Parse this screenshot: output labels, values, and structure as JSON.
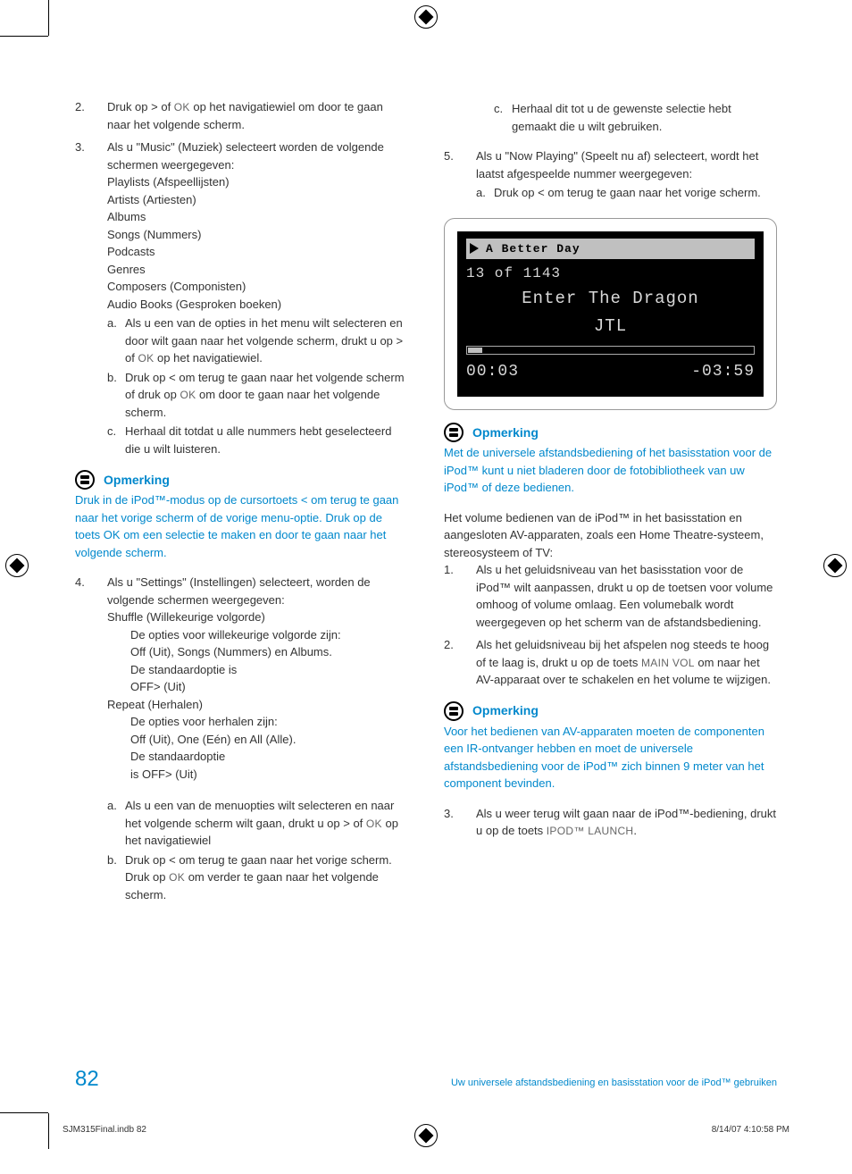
{
  "colors": {
    "accent": "#0088cc",
    "text": "#333333",
    "lcd_bg": "#000000",
    "lcd_fg": "#d8d8d8",
    "lcd_header_bg": "#c0c0c0"
  },
  "left": {
    "item2": {
      "num": "2.",
      "text_a": "Druk op > of ",
      "ok": "OK",
      "text_b": " op het navigatiewiel om door te gaan naar het volgende scherm."
    },
    "item3": {
      "num": "3.",
      "intro": "Als u \"Music\" (Muziek) selecteert worden de volgende schermen weergegeven:",
      "list": [
        "Playlists (Afspeellijsten)",
        "Artists (Artiesten)",
        "Albums",
        "Songs (Nummers)",
        "Podcasts",
        "Genres",
        "Composers (Componisten)",
        "Audio Books (Gesproken boeken)"
      ],
      "a": {
        "m": "a.",
        "t1": "Als u een van de opties in het menu wilt selecteren en door wilt gaan naar het volgende scherm, drukt u op > of ",
        "ok": "OK",
        "t2": " op het navigatiewiel."
      },
      "b": {
        "m": "b.",
        "t1": "Druk op < om terug te gaan naar het volgende scherm of druk op ",
        "ok": "OK",
        "t2": " om door te gaan naar het volgende scherm."
      },
      "c": {
        "m": "c.",
        "t": "Herhaal dit totdat u alle nummers hebt geselecteerd die u wilt luisteren."
      }
    },
    "note1": {
      "title": "Opmerking",
      "body_a": "Druk in de iPod™-modus op de cursortoets < om terug te gaan naar het vorige scherm of de vorige menu-optie. Druk op de toets ",
      "ok": "OK",
      "body_b": " om een selectie te maken en door te gaan naar het volgende scherm."
    },
    "item4": {
      "num": "4.",
      "intro": "Als u \"Settings\" (Instellingen) selecteert, worden de volgende schermen weergegeven:",
      "shuffle_h": "Shuffle (Willekeurige volgorde)",
      "shuffle_1": "De opties voor willekeurige volgorde zijn:",
      "shuffle_2": "Off (Uit), Songs (Nummers) en Albums.",
      "shuffle_3": "De standaardoptie is",
      "shuffle_4": "OFF> (Uit)",
      "repeat_h": "Repeat (Herhalen)",
      "repeat_1": "De opties voor herhalen zijn:",
      "repeat_2": "Off (Uit), One (Eén) en All (Alle).",
      "repeat_3": "De standaardoptie",
      "repeat_4": "is OFF> (Uit)",
      "a": {
        "m": "a.",
        "t1": "Als u een van de menuopties wilt selecteren en naar het volgende scherm wilt gaan, drukt u op > of ",
        "ok": "OK",
        "t2": " op het navigatiewiel"
      },
      "b": {
        "m": "b.",
        "t1": "Druk op < om terug te gaan naar het vorige scherm. Druk op ",
        "ok": "OK",
        "t2": " om verder te gaan naar het volgende scherm."
      }
    }
  },
  "right": {
    "c": {
      "m": "c.",
      "t": "Herhaal dit tot u de gewenste selectie hebt gemaakt die u wilt gebruiken."
    },
    "item5": {
      "num": "5.",
      "intro": "Als u \"Now Playing\" (Speelt nu af) selecteert, wordt het laatst afgespeelde nummer weergegeven:",
      "a": {
        "m": "a.",
        "t": "Druk op < om terug te gaan naar het vorige scherm."
      }
    },
    "lcd": {
      "header": "A Better Day",
      "counter": "13 of 1143",
      "title": "Enter The Dragon",
      "artist": "JTL",
      "progress_pct": 5,
      "elapsed": "00:03",
      "remain": "-03:59"
    },
    "note2": {
      "title": "Opmerking",
      "body": "Met de universele afstandsbediening of het basisstation voor de iPod™ kunt u niet bladeren door de fotobibliotheek van uw iPod™ of deze bedienen."
    },
    "vol_intro": "Het volume bedienen van de iPod™ in het basisstation en aangesloten AV-apparaten, zoals een Home Theatre-systeem, stereosysteem of TV:",
    "vol1": {
      "num": "1.",
      "t": "Als u het geluidsniveau van het basisstation voor de iPod™ wilt aanpassen, drukt u op de toetsen voor volume omhoog of volume omlaag. Een volumebalk wordt weergegeven op het scherm van de afstandsbediening."
    },
    "vol2": {
      "num": "2.",
      "t1": "Als het geluidsniveau bij het afspelen nog steeds te hoog of te laag is, drukt u op de toets ",
      "main": "MAIN VOL",
      "t2": " om naar het AV-apparaat over te schakelen en het volume te wijzigen."
    },
    "note3": {
      "title": "Opmerking",
      "body": "Voor het bedienen van AV-apparaten moeten de componenten een IR-ontvanger hebben en moet de universele afstandsbediening voor de iPod™ zich binnen 9 meter van het component bevinden."
    },
    "vol3": {
      "num": "3.",
      "t1": "Als u weer terug wilt gaan naar de iPod™-bediening, drukt u op de toets ",
      "launch": "IPOD™ LAUNCH",
      "t2": "."
    }
  },
  "footer": {
    "page": "82",
    "caption": "Uw universele afstandsbediening en basisstation voor de iPod™ gebruiken"
  },
  "print": {
    "file": "SJM315Final.indb   82",
    "stamp": "8/14/07   4:10:58 PM"
  }
}
